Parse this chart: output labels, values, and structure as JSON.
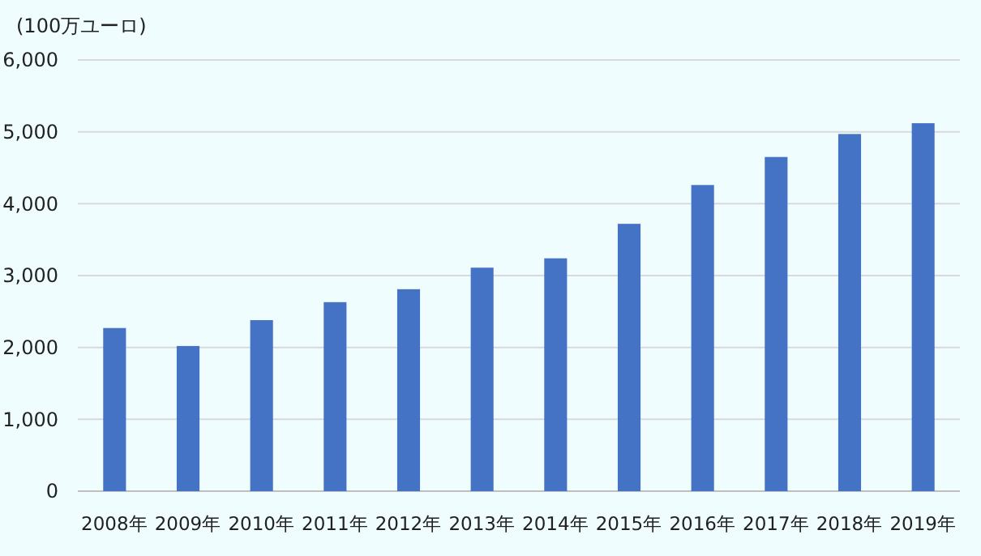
{
  "chart_data": {
    "type": "bar",
    "ylabel": "(100万ユーロ)",
    "categories": [
      "2008年",
      "2009年",
      "2010年",
      "2011年",
      "2012年",
      "2013年",
      "2014年",
      "2015年",
      "2016年",
      "2017年",
      "2018年",
      "2019年"
    ],
    "values": [
      2270,
      2020,
      2380,
      2630,
      2810,
      3110,
      3240,
      3720,
      4260,
      4650,
      4970,
      5120
    ],
    "color": "#4472c4",
    "ylim": [
      0,
      6000
    ],
    "yticks": [
      {
        "value": 0,
        "label": "0"
      },
      {
        "value": 1000,
        "label": "1,000"
      },
      {
        "value": 2000,
        "label": "2,000"
      },
      {
        "value": 3000,
        "label": "3,000"
      },
      {
        "value": 4000,
        "label": "4,000"
      },
      {
        "value": 5000,
        "label": "5,000"
      },
      {
        "value": 6000,
        "label": "6,000"
      }
    ],
    "grid": "y"
  }
}
